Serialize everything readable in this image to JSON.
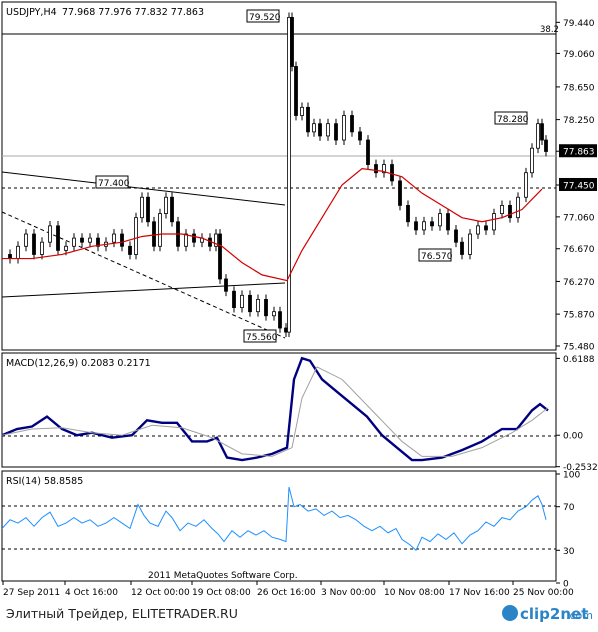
{
  "chart_data": [
    {
      "type": "candlestick",
      "title": "USDJPY,H4",
      "ohlc_label": "77.968 77.976 77.832 77.863",
      "ylim": [
        75.48,
        79.64
      ],
      "yticks": [
        "79.440",
        "79.060",
        "78.650",
        "78.250",
        "77.863",
        "77.450",
        "77.060",
        "76.670",
        "76.270",
        "75.870",
        "75.480"
      ],
      "ytick_values": [
        79.44,
        79.06,
        78.65,
        78.25,
        77.863,
        77.45,
        77.06,
        76.67,
        76.27,
        75.87,
        75.48
      ],
      "current_price": "77.863",
      "hline_label": "77.450",
      "fib_label": "38.2",
      "annotations": [
        "79.520",
        "77.400",
        "78.280",
        "76.570",
        "75.560"
      ],
      "close_path": [
        [
          0,
          76.6
        ],
        [
          8,
          76.55
        ],
        [
          16,
          76.7
        ],
        [
          24,
          76.85
        ],
        [
          32,
          76.6
        ],
        [
          40,
          76.75
        ],
        [
          48,
          76.95
        ],
        [
          56,
          76.65
        ],
        [
          64,
          76.7
        ],
        [
          72,
          76.8
        ],
        [
          80,
          76.75
        ],
        [
          88,
          76.8
        ],
        [
          96,
          76.7
        ],
        [
          104,
          76.75
        ],
        [
          112,
          76.85
        ],
        [
          120,
          76.7
        ],
        [
          128,
          76.6
        ],
        [
          134,
          77.05
        ],
        [
          140,
          77.3
        ],
        [
          146,
          77.0
        ],
        [
          152,
          76.7
        ],
        [
          158,
          77.1
        ],
        [
          164,
          77.3
        ],
        [
          170,
          77.0
        ],
        [
          176,
          76.7
        ],
        [
          184,
          76.85
        ],
        [
          192,
          76.75
        ],
        [
          200,
          76.8
        ],
        [
          208,
          76.7
        ],
        [
          214,
          76.85
        ],
        [
          218,
          76.3
        ],
        [
          224,
          76.15
        ],
        [
          232,
          75.95
        ],
        [
          240,
          76.1
        ],
        [
          248,
          75.9
        ],
        [
          256,
          76.05
        ],
        [
          264,
          75.85
        ],
        [
          272,
          75.9
        ],
        [
          278,
          75.7
        ],
        [
          284,
          75.65
        ],
        [
          287,
          79.5
        ],
        [
          290,
          78.9
        ],
        [
          294,
          78.3
        ],
        [
          300,
          78.4
        ],
        [
          306,
          78.1
        ],
        [
          312,
          78.2
        ],
        [
          318,
          78.05
        ],
        [
          326,
          78.2
        ],
        [
          334,
          78.0
        ],
        [
          342,
          78.3
        ],
        [
          350,
          78.1
        ],
        [
          358,
          78.0
        ],
        [
          366,
          77.7
        ],
        [
          374,
          77.6
        ],
        [
          382,
          77.7
        ],
        [
          390,
          77.5
        ],
        [
          398,
          77.2
        ],
        [
          406,
          77.0
        ],
        [
          414,
          76.9
        ],
        [
          422,
          77.0
        ],
        [
          430,
          76.95
        ],
        [
          438,
          77.1
        ],
        [
          446,
          76.9
        ],
        [
          454,
          76.75
        ],
        [
          460,
          76.6
        ],
        [
          468,
          76.85
        ],
        [
          476,
          76.95
        ],
        [
          484,
          76.9
        ],
        [
          492,
          77.1
        ],
        [
          500,
          77.2
        ],
        [
          508,
          77.05
        ],
        [
          516,
          77.3
        ],
        [
          524,
          77.6
        ],
        [
          530,
          77.9
        ],
        [
          536,
          78.2
        ],
        [
          540,
          78.0
        ],
        [
          544,
          77.86
        ]
      ],
      "ma_path": [
        [
          0,
          76.55
        ],
        [
          30,
          76.55
        ],
        [
          60,
          76.6
        ],
        [
          90,
          76.7
        ],
        [
          120,
          76.75
        ],
        [
          140,
          76.82
        ],
        [
          160,
          76.85
        ],
        [
          180,
          76.85
        ],
        [
          200,
          76.8
        ],
        [
          220,
          76.7
        ],
        [
          240,
          76.5
        ],
        [
          260,
          76.35
        ],
        [
          285,
          76.28
        ],
        [
          300,
          76.65
        ],
        [
          320,
          77.05
        ],
        [
          340,
          77.45
        ],
        [
          360,
          77.65
        ],
        [
          380,
          77.62
        ],
        [
          400,
          77.55
        ],
        [
          420,
          77.35
        ],
        [
          440,
          77.2
        ],
        [
          460,
          77.05
        ],
        [
          480,
          77.0
        ],
        [
          500,
          77.05
        ],
        [
          520,
          77.15
        ],
        [
          540,
          77.4
        ]
      ],
      "xlabels": [
        "27 Sep 2011",
        "4 Oct 16:00",
        "12 Oct 00:00",
        "19 Oct 08:00",
        "26 Oct 16:00",
        "3 Nov 00:00",
        "10 Nov 08:00",
        "17 Nov 16:00",
        "25 Nov 00:00"
      ]
    },
    {
      "type": "line",
      "title": "MACD(12,26,9) 0.2083 0.2171",
      "ylim": [
        -0.28,
        0.63
      ],
      "yticks": [
        "0.6188",
        "0.00",
        "-0.2532"
      ],
      "ytick_values": [
        0.6188,
        0.0,
        -0.2532
      ],
      "series": [
        {
          "values": [
            [
              0,
              0.0
            ],
            [
              15,
              0.05
            ],
            [
              30,
              0.07
            ],
            [
              45,
              0.15
            ],
            [
              60,
              0.05
            ],
            [
              75,
              0.0
            ],
            [
              90,
              0.02
            ],
            [
              110,
              -0.02
            ],
            [
              130,
              0.0
            ],
            [
              145,
              0.12
            ],
            [
              160,
              0.1
            ],
            [
              175,
              0.1
            ],
            [
              190,
              -0.05
            ],
            [
              205,
              -0.05
            ],
            [
              215,
              -0.02
            ],
            [
              225,
              -0.18
            ],
            [
              240,
              -0.2
            ],
            [
              255,
              -0.18
            ],
            [
              270,
              -0.15
            ],
            [
              285,
              -0.1
            ],
            [
              292,
              0.45
            ],
            [
              300,
              0.62
            ],
            [
              308,
              0.6
            ],
            [
              320,
              0.45
            ],
            [
              335,
              0.35
            ],
            [
              350,
              0.25
            ],
            [
              365,
              0.15
            ],
            [
              380,
              0.0
            ],
            [
              395,
              -0.1
            ],
            [
              410,
              -0.2
            ],
            [
              420,
              -0.2
            ],
            [
              440,
              -0.18
            ],
            [
              460,
              -0.12
            ],
            [
              480,
              -0.05
            ],
            [
              500,
              0.05
            ],
            [
              515,
              0.05
            ],
            [
              530,
              0.2
            ],
            [
              538,
              0.25
            ],
            [
              546,
              0.2
            ]
          ]
        },
        {
          "values": [
            [
              0,
              0.0
            ],
            [
              30,
              0.05
            ],
            [
              60,
              0.06
            ],
            [
              90,
              0.02
            ],
            [
              120,
              0.0
            ],
            [
              150,
              0.08
            ],
            [
              180,
              0.06
            ],
            [
              210,
              -0.02
            ],
            [
              240,
              -0.15
            ],
            [
              270,
              -0.17
            ],
            [
              290,
              -0.1
            ],
            [
              300,
              0.3
            ],
            [
              315,
              0.55
            ],
            [
              340,
              0.45
            ],
            [
              370,
              0.2
            ],
            [
              400,
              -0.05
            ],
            [
              420,
              -0.17
            ],
            [
              450,
              -0.17
            ],
            [
              480,
              -0.1
            ],
            [
              510,
              0.02
            ],
            [
              530,
              0.12
            ],
            [
              546,
              0.22
            ]
          ]
        }
      ]
    },
    {
      "type": "line",
      "title": "RSI(14) 58.8585",
      "ylim": [
        0,
        100
      ],
      "yticks": [
        "100",
        "70",
        "30",
        "0"
      ],
      "ytick_values": [
        100,
        70,
        30,
        0
      ],
      "series": [
        {
          "values": [
            [
              0,
              50
            ],
            [
              8,
              58
            ],
            [
              16,
              55
            ],
            [
              24,
              60
            ],
            [
              32,
              52
            ],
            [
              40,
              60
            ],
            [
              48,
              65
            ],
            [
              56,
              52
            ],
            [
              64,
              55
            ],
            [
              72,
              60
            ],
            [
              80,
              55
            ],
            [
              88,
              58
            ],
            [
              96,
              52
            ],
            [
              104,
              55
            ],
            [
              112,
              60
            ],
            [
              120,
              55
            ],
            [
              128,
              50
            ],
            [
              136,
              72
            ],
            [
              142,
              62
            ],
            [
              148,
              55
            ],
            [
              156,
              52
            ],
            [
              164,
              66
            ],
            [
              170,
              60
            ],
            [
              178,
              48
            ],
            [
              186,
              55
            ],
            [
              194,
              52
            ],
            [
              202,
              58
            ],
            [
              210,
              50
            ],
            [
              216,
              45
            ],
            [
              222,
              38
            ],
            [
              230,
              48
            ],
            [
              238,
              42
            ],
            [
              246,
              48
            ],
            [
              254,
              44
            ],
            [
              262,
              48
            ],
            [
              270,
              42
            ],
            [
              278,
              40
            ],
            [
              284,
              38
            ],
            [
              287,
              88
            ],
            [
              292,
              70
            ],
            [
              298,
              72
            ],
            [
              306,
              66
            ],
            [
              314,
              68
            ],
            [
              322,
              62
            ],
            [
              330,
              66
            ],
            [
              338,
              60
            ],
            [
              346,
              62
            ],
            [
              354,
              58
            ],
            [
              362,
              52
            ],
            [
              370,
              48
            ],
            [
              378,
              52
            ],
            [
              386,
              46
            ],
            [
              394,
              50
            ],
            [
              400,
              40
            ],
            [
              408,
              35
            ],
            [
              414,
              30
            ],
            [
              420,
              42
            ],
            [
              428,
              38
            ],
            [
              436,
              45
            ],
            [
              444,
              40
            ],
            [
              452,
              46
            ],
            [
              460,
              36
            ],
            [
              468,
              44
            ],
            [
              476,
              48
            ],
            [
              484,
              56
            ],
            [
              492,
              52
            ],
            [
              500,
              60
            ],
            [
              508,
              58
            ],
            [
              516,
              66
            ],
            [
              524,
              70
            ],
            [
              530,
              76
            ],
            [
              536,
              80
            ],
            [
              540,
              72
            ],
            [
              544,
              58
            ]
          ]
        }
      ]
    }
  ],
  "footer": {
    "copyright": "2011 MetaQuotes Software Corp.",
    "source": "Элитный Трейдер, ELITETRADER.RU",
    "logo": "clip2net",
    "logo_url": ".com"
  },
  "colors": {
    "bull_bear": "#000000",
    "ma": "#d40000",
    "macd_main": "#000080",
    "macd_signal": "#a0a0a0",
    "rsi": "#1e90ff",
    "grid_dash": "#000000",
    "logo_blue": "#2b84c6"
  }
}
